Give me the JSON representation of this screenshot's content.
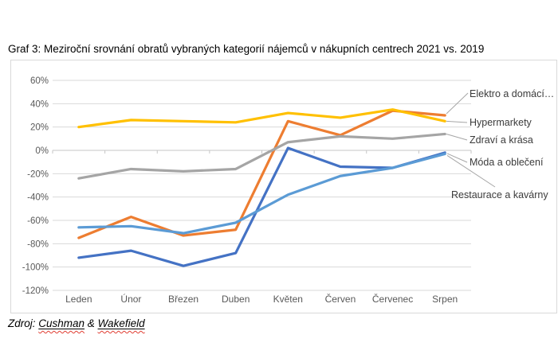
{
  "title": "Graf 3: Meziroční srovnání obratů vybraných kategorií nájemců v nákupních centrech 2021 vs. 2019",
  "source": {
    "prefix": "Zdroj: ",
    "link1": "Cushman",
    "amp": " & ",
    "link2": "Wakefield"
  },
  "colors": {
    "gridline": "#d9d9d9",
    "zero_axis": "#c6c6c6",
    "axis_text": "#595959",
    "label_text": "#3b3b3b",
    "leader_line": "#a6a6a6",
    "chart_border": "#d9d9d9"
  },
  "chart_data": {
    "type": "line",
    "title": "Graf 3: Meziroční srovnání obratů vybraných kategorií nájemců v nákupních centrech 2021 vs. 2019",
    "categories": [
      "Leden",
      "Únor",
      "Březen",
      "Duben",
      "Květen",
      "Červen",
      "Červenec",
      "Srpen"
    ],
    "series": [
      {
        "name": "Elektro a domácí…",
        "color": "#ED7D31",
        "values": [
          -75,
          -57,
          -73,
          -68,
          25,
          13,
          34,
          30
        ]
      },
      {
        "name": "Hypermarkety",
        "color": "#FFC000",
        "values": [
          20,
          26,
          25,
          24,
          32,
          28,
          35,
          25
        ]
      },
      {
        "name": "Zdraví a krása",
        "color": "#A5A5A5",
        "values": [
          -24,
          -16,
          -18,
          -16,
          7,
          12,
          10,
          14
        ]
      },
      {
        "name": "Móda a oblečení",
        "color": "#4472C4",
        "values": [
          -92,
          -86,
          -99,
          -88,
          2,
          -14,
          -15,
          -2
        ]
      },
      {
        "name": "Restaurace a kavárny",
        "color": "#5B9BD5",
        "values": [
          -66,
          -65,
          -71,
          -62,
          -38,
          -22,
          -15,
          -3
        ]
      }
    ],
    "yticks": [
      60,
      40,
      20,
      0,
      -20,
      -40,
      -60,
      -80,
      -100,
      -120
    ],
    "ytick_labels": [
      "60%",
      "40%",
      "20%",
      "0%",
      "-20%",
      "-40%",
      "-60%",
      "-80%",
      "-100%",
      "-120%"
    ],
    "ylim": [
      -120,
      60
    ],
    "unit": "%",
    "grid": true,
    "legend_position": "line-end annotations, right side"
  }
}
